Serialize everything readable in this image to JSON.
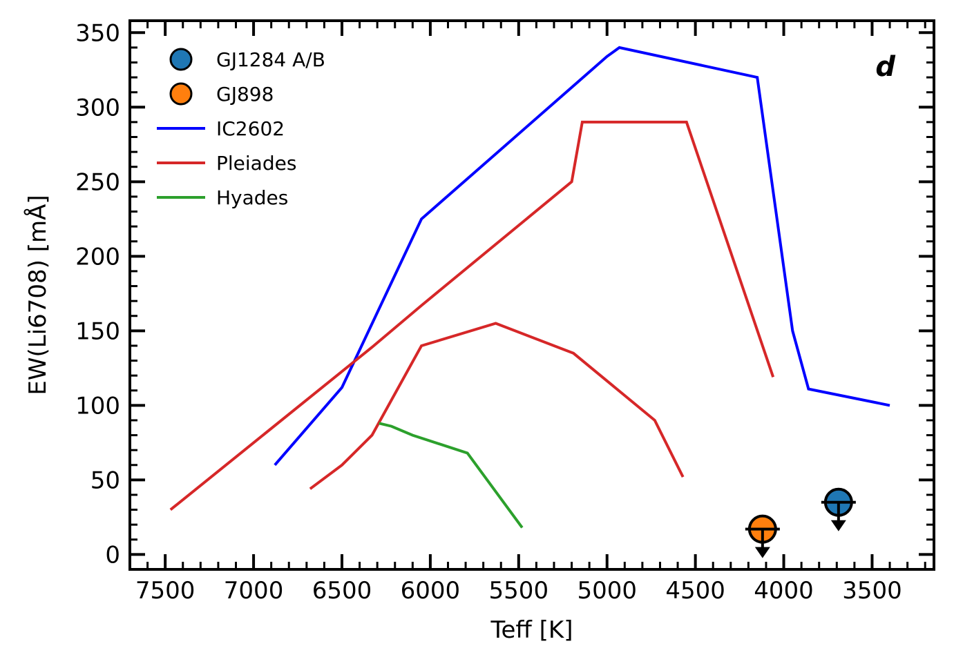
{
  "chart_data": {
    "type": "line",
    "title": "",
    "xlabel": "Teff [K]",
    "ylabel": "EW(Li6708) [mÅ]",
    "panel_label": "d",
    "xlim": [
      7700,
      3150
    ],
    "ylim": [
      -10,
      358
    ],
    "x_inverted": true,
    "x_ticks": [
      7500,
      7000,
      6500,
      6000,
      5500,
      5000,
      4500,
      4000,
      3500
    ],
    "y_ticks": [
      0,
      50,
      100,
      150,
      200,
      250,
      300,
      350
    ],
    "grid": false,
    "legend_position": "upper-left",
    "series": [
      {
        "name": "IC2602",
        "kind": "line",
        "color": "#0000ff",
        "x": [
          6880,
          6500,
          6050,
          5000,
          4930,
          4150,
          3950,
          3860,
          3400
        ],
        "y": [
          60,
          112,
          225,
          334,
          340,
          320,
          150,
          111,
          100
        ]
      },
      {
        "name": "Pleiades",
        "kind": "line",
        "color": "#d62728",
        "x": [
          7470,
          6330,
          6050,
          5200,
          5140,
          4550,
          4060
        ],
        "y": [
          30,
          139,
          167,
          250,
          290,
          290,
          119
        ]
      },
      {
        "name": "Pleiades",
        "kind": "line",
        "color": "#d62728",
        "legend": false,
        "x": [
          6680,
          6500,
          6330,
          6050,
          5630,
          5190,
          4730,
          4570
        ],
        "y": [
          44,
          60,
          80,
          140,
          155,
          135,
          90,
          52
        ]
      },
      {
        "name": "Hyades",
        "kind": "line",
        "color": "#2ca02c",
        "x": [
          6290,
          6220,
          6100,
          5790,
          5480
        ],
        "y": [
          88,
          86,
          80,
          68,
          18
        ]
      },
      {
        "name": "GJ1284 A/B",
        "kind": "upper-limit",
        "color": "#1f77b4",
        "x": [
          3690
        ],
        "y": [
          35
        ]
      },
      {
        "name": "GJ898",
        "kind": "upper-limit",
        "color": "#ff7f0e",
        "x": [
          4120
        ],
        "y": [
          17
        ]
      }
    ]
  }
}
